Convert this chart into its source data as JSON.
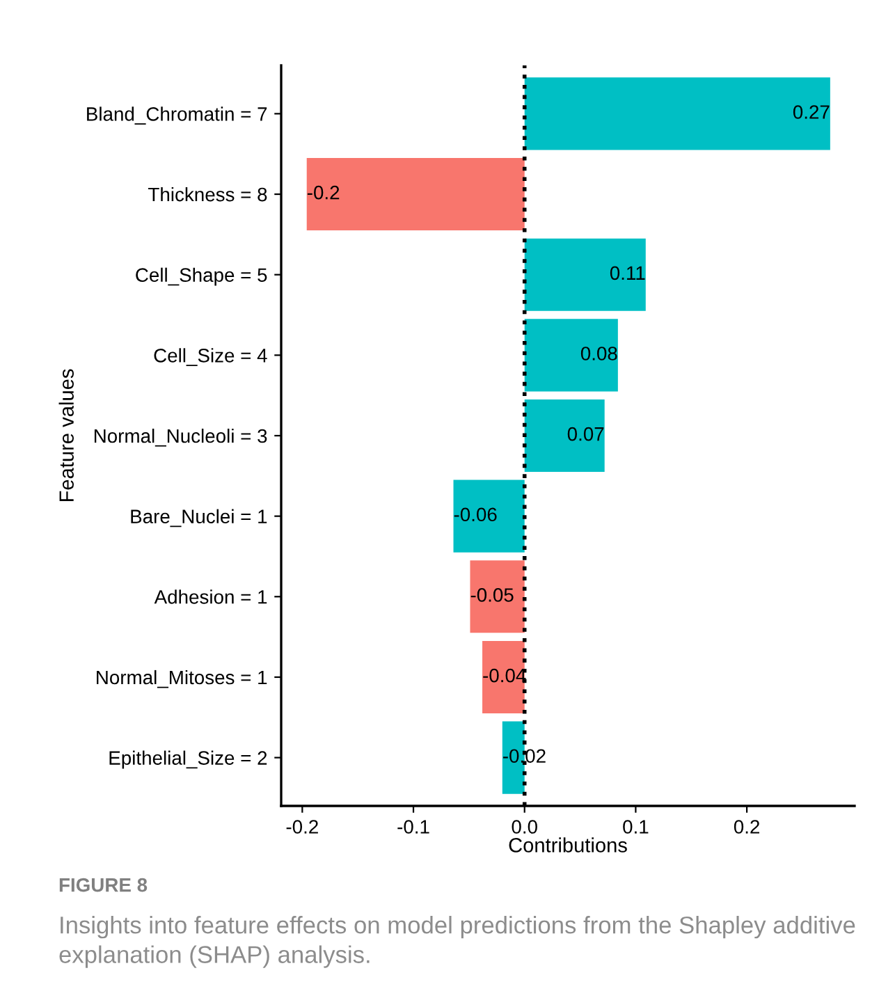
{
  "chart_data": {
    "type": "bar",
    "orientation": "horizontal",
    "ylabel": "Feature values",
    "xlabel": "Contributions",
    "categories": [
      "Bland_Chromatin = 7",
      "Thickness = 8",
      "Cell_Shape = 5",
      "Cell_Size = 4",
      "Normal_Nucleoli = 3",
      "Bare_Nuclei = 1",
      "Adhesion = 1",
      "Normal_Mitoses = 1",
      "Epithelial_Size = 2"
    ],
    "values": [
      0.275,
      -0.196,
      0.109,
      0.084,
      0.072,
      -0.064,
      -0.049,
      -0.038,
      -0.02
    ],
    "value_labels": [
      "0.27",
      "-0.2",
      "0.11",
      "0.08",
      "0.07",
      "-0.06",
      "-0.05",
      "-0.04",
      "-0.02"
    ],
    "colors": [
      "#00bfc4",
      "#f8766d",
      "#00bfc4",
      "#00bfc4",
      "#00bfc4",
      "#00bfc4",
      "#f8766d",
      "#f8766d",
      "#00bfc4"
    ],
    "xlim": [
      -0.219,
      0.297
    ],
    "xticks": [
      {
        "value": -0.2,
        "label": "-0.2"
      },
      {
        "value": -0.1,
        "label": "-0.1"
      },
      {
        "value": 0,
        "label": "0.0"
      },
      {
        "value": 0.1,
        "label": "0.1"
      },
      {
        "value": 0.2,
        "label": "0.2"
      }
    ],
    "ref_lines": [
      {
        "axis": "x",
        "value": 0,
        "color": "#000000",
        "line_style": "dotted"
      }
    ],
    "grid": false,
    "legend": false,
    "annotations": [
      "FIGURE 8",
      "Insights into feature effects on model predictions from the Shapley additive explanation (SHAP) analysis."
    ]
  }
}
